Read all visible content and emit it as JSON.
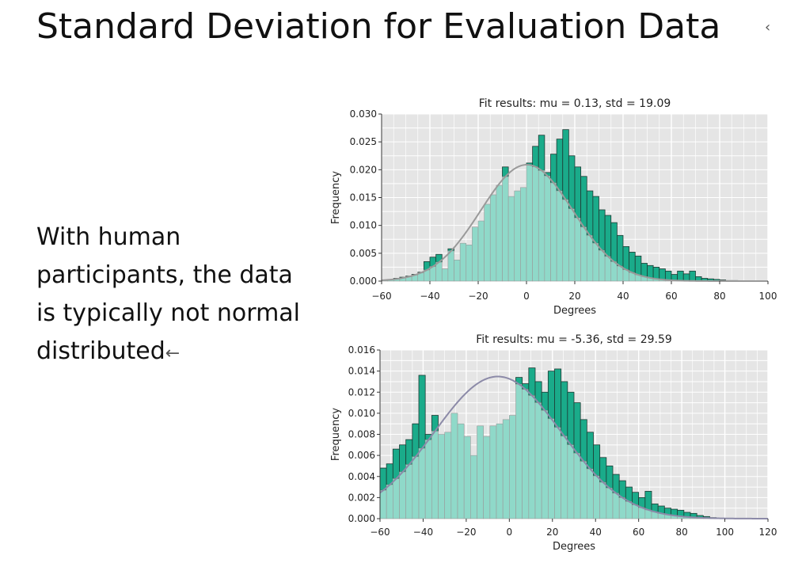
{
  "slide": {
    "title": "Standard Deviation for Evaluation Data",
    "body_text": "With human participants, the data is typically not normal distributed"
  },
  "colors": {
    "dark_bar": "#1aab8a",
    "light_bar": "#8fd9c9",
    "light_bar_edge": "#9a9a9a",
    "dark_bar_edge": "#1f3b34",
    "plot_bg": "#e5e5e5",
    "curve_top": "#9a9a9a",
    "curve_bottom": "#8c8aa8"
  },
  "chart_data": [
    {
      "type": "bar",
      "title": "Fit results: mu = 0.13,  std = 19.09",
      "xlabel": "Degrees",
      "ylabel": "Frequency",
      "xlim": [
        -60,
        100
      ],
      "ylim": [
        0,
        0.03
      ],
      "grid": true,
      "xticks": [
        -60,
        -40,
        -20,
        0,
        20,
        40,
        60,
        80,
        100
      ],
      "xtick_labels": [
        "−60",
        "−40",
        "−20",
        "0",
        "20",
        "40",
        "60",
        "80",
        "100"
      ],
      "yticks": [
        0,
        0.005,
        0.01,
        0.015,
        0.02,
        0.025,
        0.03
      ],
      "ytick_labels": [
        "0.000",
        "0.005",
        "0.010",
        "0.015",
        "0.020",
        "0.025",
        "0.030"
      ],
      "fit": {
        "mu": 0.13,
        "std": 19.09
      },
      "bin_start": -60,
      "bin_width": 2.5,
      "values": [
        0.0002,
        0.0003,
        0.0005,
        0.0007,
        0.0009,
        0.0012,
        0.0016,
        0.0035,
        0.0043,
        0.0048,
        0.0022,
        0.0058,
        0.0038,
        0.0068,
        0.0065,
        0.0097,
        0.0108,
        0.0138,
        0.0155,
        0.0172,
        0.0205,
        0.0152,
        0.0162,
        0.0168,
        0.0212,
        0.0242,
        0.0262,
        0.0195,
        0.0228,
        0.0255,
        0.0272,
        0.0225,
        0.0205,
        0.0188,
        0.0162,
        0.0152,
        0.0128,
        0.0118,
        0.0105,
        0.0082,
        0.0062,
        0.0052,
        0.0045,
        0.0032,
        0.0028,
        0.0025,
        0.0022,
        0.0018,
        0.0012,
        0.0018,
        0.0013,
        0.0018,
        0.0008,
        0.0005,
        0.0004,
        0.0003,
        0.0002,
        0.0001,
        0.0001
      ]
    },
    {
      "type": "bar",
      "title": "Fit results: mu = -5.36,  std = 29.59",
      "xlabel": "Degrees",
      "ylabel": "Frequency",
      "xlim": [
        -60,
        120
      ],
      "ylim": [
        0,
        0.016
      ],
      "grid": true,
      "xticks": [
        -60,
        -40,
        -20,
        0,
        20,
        40,
        60,
        80,
        100,
        120
      ],
      "xtick_labels": [
        "−60",
        "−40",
        "−20",
        "0",
        "20",
        "40",
        "60",
        "80",
        "100",
        "120"
      ],
      "yticks": [
        0,
        0.002,
        0.004,
        0.006,
        0.008,
        0.01,
        0.012,
        0.014,
        0.016
      ],
      "ytick_labels": [
        "0.000",
        "0.002",
        "0.004",
        "0.006",
        "0.008",
        "0.010",
        "0.012",
        "0.014",
        "0.016"
      ],
      "fit": {
        "mu": -5.36,
        "std": 29.59
      },
      "bin_start": -60,
      "bin_width": 3,
      "values": [
        0.0048,
        0.0052,
        0.0066,
        0.007,
        0.0075,
        0.009,
        0.0136,
        0.008,
        0.0098,
        0.008,
        0.0082,
        0.01,
        0.009,
        0.0078,
        0.006,
        0.0088,
        0.0078,
        0.0088,
        0.009,
        0.0094,
        0.0098,
        0.0134,
        0.0128,
        0.0143,
        0.013,
        0.012,
        0.014,
        0.0142,
        0.013,
        0.012,
        0.011,
        0.0094,
        0.0082,
        0.007,
        0.0058,
        0.005,
        0.0042,
        0.0036,
        0.003,
        0.0025,
        0.002,
        0.0026,
        0.0014,
        0.0012,
        0.001,
        0.0009,
        0.0008,
        0.0006,
        0.0005,
        0.0003,
        0.0002,
        0.0001
      ]
    }
  ]
}
